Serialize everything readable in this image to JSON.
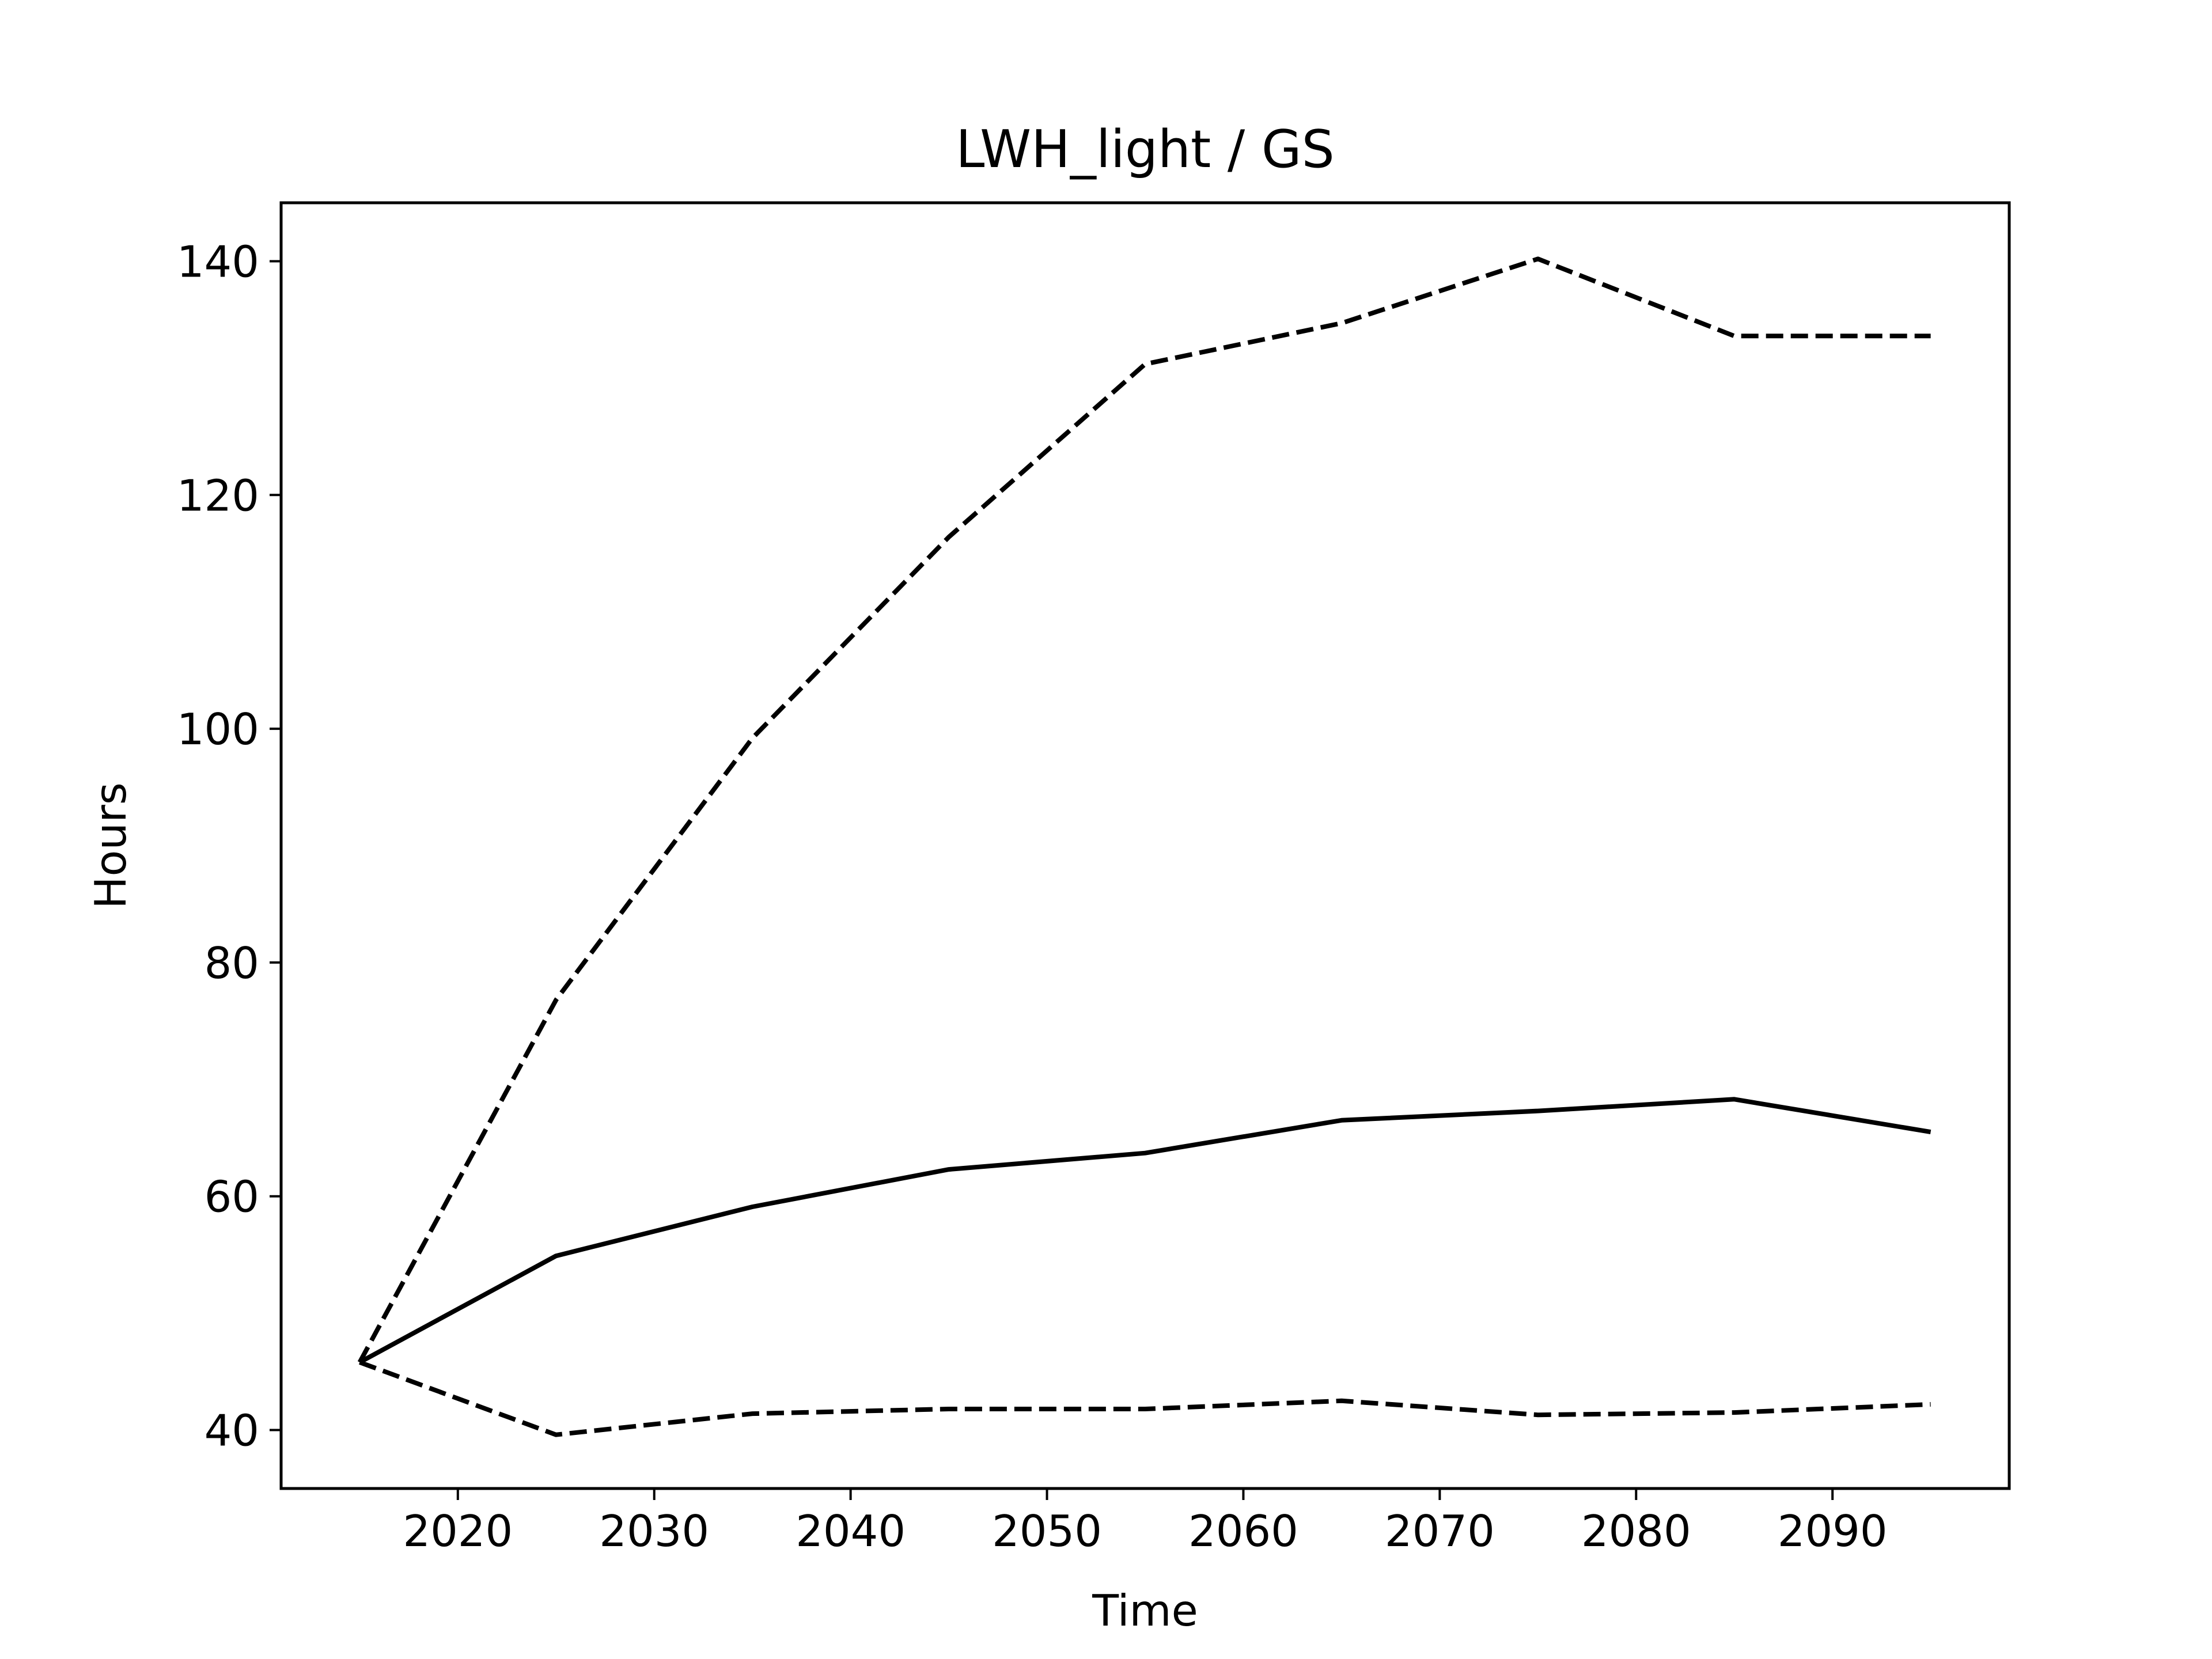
{
  "chart_data": {
    "type": "line",
    "title": "LWH_light / GS",
    "xlabel": "Time",
    "ylabel": "Hours",
    "xlim": [
      2011,
      2099
    ],
    "ylim": [
      35,
      145
    ],
    "xticks": [
      2020,
      2030,
      2040,
      2050,
      2060,
      2070,
      2080,
      2090
    ],
    "yticks": [
      40,
      60,
      80,
      100,
      120,
      140
    ],
    "grid": false,
    "legend": "none",
    "series": [
      {
        "style": "solid",
        "color": "#000000",
        "x": [
          2015,
          2025,
          2035,
          2045,
          2055,
          2065,
          2075,
          2085,
          2095
        ],
        "y": [
          45.8,
          54.9,
          59.1,
          62.3,
          63.7,
          66.5,
          67.3,
          68.3,
          65.5
        ]
      },
      {
        "style": "dashed",
        "color": "#000000",
        "x": [
          2015,
          2025,
          2035,
          2045,
          2055,
          2065,
          2075,
          2085,
          2095
        ],
        "y": [
          45.8,
          76.8,
          99.2,
          116.4,
          131.2,
          134.7,
          140.2,
          133.6,
          133.6
        ]
      },
      {
        "style": "dashed",
        "color": "#000000",
        "x": [
          2015,
          2025,
          2035,
          2045,
          2055,
          2065,
          2075,
          2085,
          2095
        ],
        "y": [
          45.8,
          39.6,
          41.4,
          41.8,
          41.8,
          42.5,
          41.3,
          41.5,
          42.2
        ]
      }
    ]
  }
}
